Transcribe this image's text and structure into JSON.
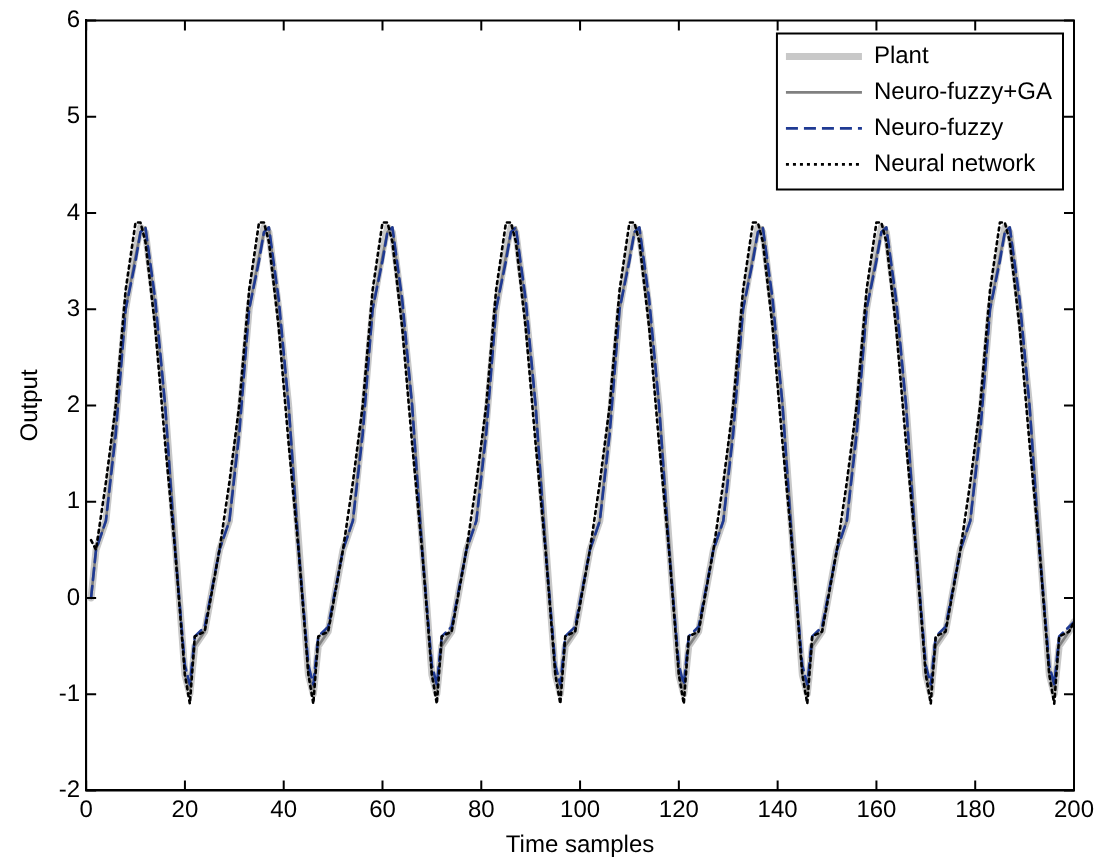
{
  "chart_data": {
    "type": "line",
    "xlabel": "Time samples",
    "ylabel": "Output",
    "xlim": [
      0,
      200
    ],
    "xticks": [
      0,
      20,
      40,
      60,
      80,
      100,
      120,
      140,
      160,
      180,
      200
    ],
    "ylim": [
      -2,
      6
    ],
    "yticks": [
      -2,
      -1,
      0,
      1,
      2,
      3,
      4,
      5,
      6
    ],
    "grid": false,
    "legend": "top right",
    "marker": "none",
    "x": [
      1,
      2,
      4,
      6,
      8,
      10,
      11,
      12,
      14,
      16,
      18,
      20,
      21,
      22,
      24,
      27,
      29,
      31,
      33,
      35,
      36,
      37,
      39,
      41,
      43,
      45,
      46,
      47,
      49,
      52,
      54,
      56,
      58,
      60,
      61,
      62,
      64,
      66,
      68,
      70,
      71,
      72,
      74,
      77,
      79,
      81,
      83,
      85,
      86,
      87,
      89,
      91,
      93,
      95,
      96,
      97,
      99,
      102,
      104,
      106,
      108,
      110,
      111,
      112,
      114,
      116,
      118,
      120,
      121,
      122,
      124,
      127,
      129,
      131,
      133,
      135,
      136,
      137,
      139,
      141,
      143,
      145,
      146,
      147,
      149,
      152,
      154,
      156,
      158,
      160,
      161,
      162,
      164,
      166,
      168,
      170,
      171,
      172,
      174,
      177,
      179,
      181,
      183,
      185,
      186,
      187,
      189,
      191,
      193,
      195,
      196,
      197,
      199,
      200
    ],
    "series": [
      {
        "name": "Plant",
        "color": "#c8c8c8",
        "line_style": "solid",
        "values": [
          0,
          0.5,
          0.8,
          1.8,
          3.0,
          3.6,
          3.85,
          3.8,
          3.0,
          2.0,
          0.6,
          -0.8,
          -1.0,
          -0.5,
          -0.35,
          0.5,
          0.8,
          1.8,
          3.0,
          3.6,
          3.85,
          3.8,
          3.0,
          2.0,
          0.6,
          -0.8,
          -1.0,
          -0.5,
          -0.35,
          0.5,
          0.8,
          1.8,
          3.0,
          3.6,
          3.85,
          3.8,
          3.0,
          2.0,
          0.6,
          -0.8,
          -1.0,
          -0.5,
          -0.35,
          0.5,
          0.8,
          1.8,
          3.0,
          3.6,
          3.85,
          3.8,
          3.0,
          2.0,
          0.6,
          -0.8,
          -1.0,
          -0.5,
          -0.35,
          0.5,
          0.8,
          1.8,
          3.0,
          3.6,
          3.85,
          3.8,
          3.0,
          2.0,
          0.6,
          -0.8,
          -1.0,
          -0.5,
          -0.35,
          0.5,
          0.8,
          1.8,
          3.0,
          3.6,
          3.85,
          3.8,
          3.0,
          2.0,
          0.6,
          -0.8,
          -1.0,
          -0.5,
          -0.35,
          0.5,
          0.8,
          1.8,
          3.0,
          3.6,
          3.85,
          3.8,
          3.0,
          2.0,
          0.6,
          -0.8,
          -1.0,
          -0.5,
          -0.35,
          0.5,
          0.8,
          1.8,
          3.0,
          3.6,
          3.85,
          3.8,
          3.0,
          2.0,
          0.6,
          -0.8,
          -1.0,
          -0.5,
          -0.35,
          -0.25
        ]
      },
      {
        "name": "Neuro-fuzzy+GA",
        "color": "#808080",
        "line_style": "solid",
        "values": [
          0,
          0.5,
          0.8,
          1.8,
          3.0,
          3.55,
          3.8,
          3.85,
          3.0,
          2.0,
          0.6,
          -0.8,
          -0.95,
          -0.5,
          -0.35,
          0.5,
          0.8,
          1.8,
          3.0,
          3.55,
          3.8,
          3.85,
          3.0,
          2.0,
          0.6,
          -0.8,
          -0.95,
          -0.5,
          -0.35,
          0.5,
          0.8,
          1.8,
          3.0,
          3.55,
          3.8,
          3.85,
          3.0,
          2.0,
          0.6,
          -0.8,
          -0.95,
          -0.5,
          -0.35,
          0.5,
          0.8,
          1.8,
          3.0,
          3.55,
          3.8,
          3.85,
          3.0,
          2.0,
          0.6,
          -0.8,
          -0.95,
          -0.5,
          -0.35,
          0.5,
          0.8,
          1.8,
          3.0,
          3.55,
          3.8,
          3.85,
          3.0,
          2.0,
          0.6,
          -0.8,
          -0.95,
          -0.5,
          -0.35,
          0.5,
          0.8,
          1.8,
          3.0,
          3.55,
          3.8,
          3.85,
          3.0,
          2.0,
          0.6,
          -0.8,
          -0.95,
          -0.5,
          -0.35,
          0.5,
          0.8,
          1.8,
          3.0,
          3.55,
          3.8,
          3.85,
          3.0,
          2.0,
          0.6,
          -0.8,
          -0.95,
          -0.5,
          -0.35,
          0.5,
          0.8,
          1.8,
          3.0,
          3.55,
          3.8,
          3.85,
          3.0,
          2.0,
          0.6,
          -0.8,
          -0.95,
          -0.5,
          -0.35,
          -0.25
        ]
      },
      {
        "name": "Neuro-fuzzy",
        "color": "#1f3a93",
        "line_style": "dashed",
        "values": [
          0,
          0.5,
          0.8,
          1.7,
          3.0,
          3.5,
          3.8,
          3.85,
          3.1,
          2.0,
          0.5,
          -0.7,
          -0.9,
          -0.4,
          -0.3,
          0.5,
          0.8,
          1.7,
          3.0,
          3.5,
          3.8,
          3.85,
          3.1,
          2.0,
          0.5,
          -0.7,
          -0.9,
          -0.4,
          -0.3,
          0.5,
          0.8,
          1.7,
          3.0,
          3.5,
          3.8,
          3.85,
          3.1,
          2.0,
          0.5,
          -0.7,
          -0.9,
          -0.4,
          -0.3,
          0.5,
          0.8,
          1.7,
          3.0,
          3.5,
          3.8,
          3.85,
          3.1,
          2.0,
          0.5,
          -0.7,
          -0.9,
          -0.4,
          -0.3,
          0.5,
          0.8,
          1.7,
          3.0,
          3.5,
          3.8,
          3.85,
          3.1,
          2.0,
          0.5,
          -0.7,
          -0.9,
          -0.4,
          -0.3,
          0.5,
          0.8,
          1.7,
          3.0,
          3.5,
          3.8,
          3.85,
          3.1,
          2.0,
          0.5,
          -0.7,
          -0.9,
          -0.4,
          -0.3,
          0.5,
          0.8,
          1.7,
          3.0,
          3.5,
          3.8,
          3.85,
          3.1,
          2.0,
          0.5,
          -0.7,
          -0.9,
          -0.4,
          -0.3,
          0.5,
          0.8,
          1.7,
          3.0,
          3.5,
          3.8,
          3.85,
          3.1,
          2.0,
          0.5,
          -0.7,
          -0.9,
          -0.4,
          -0.3,
          -0.25
        ]
      },
      {
        "name": "Neural network",
        "color": "#000000",
        "line_style": "dotted",
        "values": [
          0.6,
          0.5,
          1.2,
          2.0,
          3.2,
          3.9,
          3.9,
          3.7,
          2.8,
          1.6,
          0.5,
          -0.8,
          -1.1,
          -0.4,
          -0.35,
          0.5,
          1.2,
          2.0,
          3.2,
          3.9,
          3.9,
          3.7,
          2.8,
          1.6,
          0.5,
          -0.8,
          -1.1,
          -0.4,
          -0.35,
          0.5,
          1.2,
          2.0,
          3.2,
          3.9,
          3.9,
          3.7,
          2.8,
          1.6,
          0.5,
          -0.8,
          -1.1,
          -0.4,
          -0.35,
          0.5,
          1.2,
          2.0,
          3.2,
          3.9,
          3.9,
          3.7,
          2.8,
          1.6,
          0.5,
          -0.8,
          -1.1,
          -0.4,
          -0.35,
          0.5,
          1.2,
          2.0,
          3.2,
          3.9,
          3.9,
          3.7,
          2.8,
          1.6,
          0.5,
          -0.8,
          -1.1,
          -0.4,
          -0.35,
          0.5,
          1.2,
          2.0,
          3.2,
          3.9,
          3.9,
          3.7,
          2.8,
          1.6,
          0.5,
          -0.8,
          -1.1,
          -0.4,
          -0.35,
          0.5,
          1.2,
          2.0,
          3.2,
          3.9,
          3.9,
          3.7,
          2.8,
          1.6,
          0.5,
          -0.8,
          -1.1,
          -0.4,
          -0.35,
          0.5,
          1.2,
          2.0,
          3.2,
          3.9,
          3.9,
          3.7,
          2.8,
          1.6,
          0.5,
          -0.8,
          -1.1,
          -0.4,
          -0.35,
          -0.25
        ]
      }
    ]
  }
}
